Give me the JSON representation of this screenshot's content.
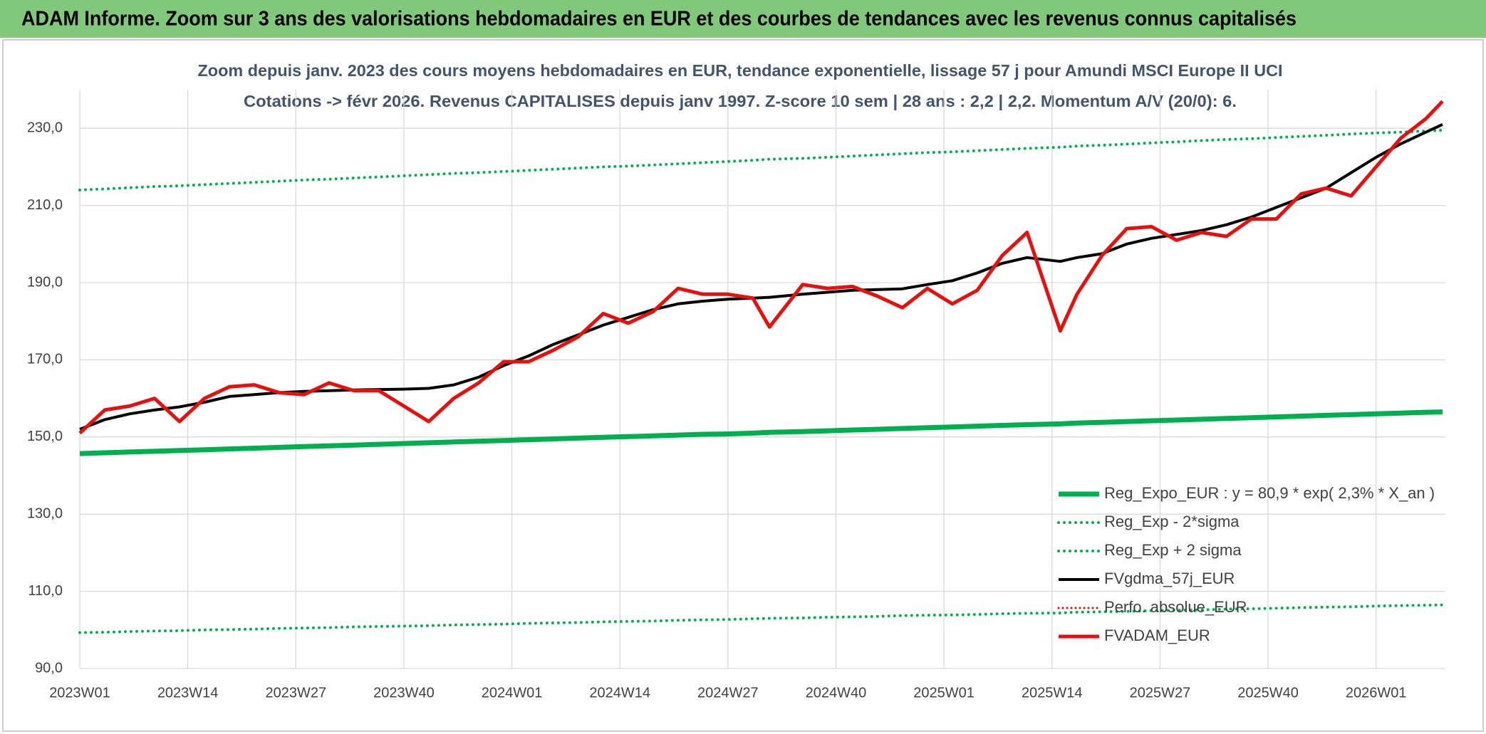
{
  "chart_data": {
    "type": "line",
    "title": "ADAM Informe. Zoom sur 3 ans des valorisations hebdomadaires en EUR et des courbes de tendances avec les revenus connus capitalisés",
    "subtitle": [
      "Zoom depuis janv. 2023 des cours moyens hebdomadaires en EUR, tendance exponentielle, lissage 57 j pour Amundi MSCI Europe II UCI",
      "Cotations -> févr 2026. Revenus CAPITALISES depuis janv 1997. Z-score 10 sem | 28 ans : 2,2 | 2,2. Momentum A/V (20/0): 6."
    ],
    "x": [
      0,
      3,
      6,
      9,
      12,
      15,
      18,
      21,
      24,
      27,
      30,
      33,
      36,
      39,
      42,
      45,
      48,
      51,
      54,
      57,
      60,
      63,
      66,
      69,
      72,
      75,
      78,
      81,
      83,
      87,
      90,
      93,
      96,
      99,
      102,
      105,
      108,
      111,
      114,
      118,
      120,
      123,
      126,
      129,
      132,
      135,
      138,
      141,
      144,
      147,
      150,
      153,
      156,
      159,
      162,
      164
    ],
    "xlim": [
      0,
      164
    ],
    "xticks": [
      {
        "value": 0,
        "label": "2023W01"
      },
      {
        "value": 13,
        "label": "2023W14"
      },
      {
        "value": 26,
        "label": "2023W27"
      },
      {
        "value": 39,
        "label": "2023W40"
      },
      {
        "value": 52,
        "label": "2024W01"
      },
      {
        "value": 65,
        "label": "2024W14"
      },
      {
        "value": 78,
        "label": "2024W27"
      },
      {
        "value": 91,
        "label": "2024W40"
      },
      {
        "value": 104,
        "label": "2025W01"
      },
      {
        "value": 117,
        "label": "2025W14"
      },
      {
        "value": 130,
        "label": "2025W27"
      },
      {
        "value": 143,
        "label": "2025W40"
      },
      {
        "value": 156,
        "label": "2026W01"
      }
    ],
    "ylim": [
      90,
      240
    ],
    "yticks": [
      {
        "value": 90,
        "label": "90,0"
      },
      {
        "value": 110,
        "label": "110,0"
      },
      {
        "value": 130,
        "label": "130,0"
      },
      {
        "value": 150,
        "label": "150,0"
      },
      {
        "value": 170,
        "label": "170,0"
      },
      {
        "value": 190,
        "label": "190,0"
      },
      {
        "value": 210,
        "label": "210,0"
      },
      {
        "value": 230,
        "label": "230,0"
      }
    ],
    "grid": true,
    "legend": "lower right",
    "series": [
      {
        "name": "Reg_Expo_EUR : y = 80,9 * exp( 2,3% *  X_an )",
        "color": "#00b050",
        "style": "solid",
        "linewidth": 7,
        "values": [
          145.7,
          145.9,
          146.1,
          146.3,
          146.5,
          146.7,
          146.9,
          147.1,
          147.3,
          147.5,
          147.7,
          147.9,
          148.1,
          148.3,
          148.5,
          148.7,
          148.9,
          149.1,
          149.3,
          149.5,
          149.7,
          149.9,
          150.1,
          150.3,
          150.5,
          150.7,
          150.8,
          151.0,
          151.2,
          151.4,
          151.6,
          151.8,
          152.0,
          152.2,
          152.4,
          152.6,
          152.8,
          153.0,
          153.2,
          153.4,
          153.6,
          153.8,
          154.0,
          154.2,
          154.4,
          154.6,
          154.8,
          155.0,
          155.2,
          155.4,
          155.6,
          155.8,
          156.0,
          156.2,
          156.4,
          156.5
        ]
      },
      {
        "name": "Reg_Exp - 2*sigma",
        "color": "#00b050",
        "style": "dotted",
        "linewidth": 4,
        "values": [
          99.3,
          99.4,
          99.6,
          99.7,
          99.8,
          100.0,
          100.1,
          100.2,
          100.4,
          100.5,
          100.6,
          100.8,
          100.9,
          101.0,
          101.1,
          101.3,
          101.4,
          101.5,
          101.7,
          101.8,
          101.9,
          102.1,
          102.2,
          102.3,
          102.5,
          102.6,
          102.7,
          102.9,
          103.0,
          103.1,
          103.3,
          103.4,
          103.5,
          103.7,
          103.8,
          103.9,
          104.0,
          104.2,
          104.3,
          104.4,
          104.6,
          104.7,
          104.8,
          105.0,
          105.1,
          105.2,
          105.4,
          105.5,
          105.6,
          105.8,
          105.9,
          106.0,
          106.2,
          106.3,
          106.4,
          106.5
        ]
      },
      {
        "name": "Reg_Exp + 2 sigma",
        "color": "#00b050",
        "style": "dotted",
        "linewidth": 4,
        "values": [
          214.0,
          214.3,
          214.6,
          214.9,
          215.1,
          215.4,
          215.7,
          216.0,
          216.3,
          216.6,
          216.8,
          217.1,
          217.4,
          217.7,
          218.0,
          218.3,
          218.5,
          218.8,
          219.1,
          219.4,
          219.7,
          220.0,
          220.2,
          220.5,
          220.8,
          221.1,
          221.4,
          221.7,
          222.0,
          222.2,
          222.5,
          222.8,
          223.1,
          223.4,
          223.7,
          223.9,
          224.2,
          224.5,
          224.8,
          225.1,
          225.4,
          225.6,
          225.9,
          226.2,
          226.5,
          226.8,
          227.1,
          227.3,
          227.6,
          227.9,
          228.2,
          228.5,
          228.8,
          229.0,
          229.3,
          229.5
        ]
      },
      {
        "name": "FVgdma_57j_EUR",
        "color": "#000000",
        "style": "solid",
        "linewidth": 4,
        "values": [
          152,
          154.5,
          156,
          157,
          157.8,
          159,
          160.5,
          161,
          161.5,
          161.8,
          162,
          162.2,
          162.3,
          162.4,
          162.6,
          163.5,
          165.5,
          168.5,
          171,
          174,
          176.5,
          179,
          181,
          183,
          184.5,
          185.2,
          185.7,
          186,
          186.2,
          187,
          187.5,
          188,
          188.2,
          188.4,
          189.5,
          190.5,
          192.5,
          195,
          196.5,
          195.5,
          196.5,
          197.5,
          200,
          201.5,
          202.5,
          203.5,
          205,
          207,
          209.5,
          212,
          214.5,
          218.5,
          222.5,
          226,
          229,
          231
        ]
      },
      {
        "name": "Perfo. absolue_EUR",
        "color": "#ff0000",
        "style": "dotted",
        "linewidth": 3,
        "values": [
          null,
          null,
          null,
          null,
          null,
          null,
          null,
          null,
          null,
          null,
          null,
          null,
          null,
          null,
          null,
          null,
          null,
          null,
          null,
          null,
          null,
          null,
          null,
          null,
          null,
          null,
          null,
          null,
          null,
          null,
          null,
          null,
          null,
          null,
          null,
          null,
          null,
          null,
          null,
          null,
          null,
          null,
          null,
          null,
          null,
          null,
          null,
          null,
          null,
          null,
          null,
          null,
          null,
          null,
          null,
          null
        ]
      },
      {
        "name": "FVADAM_EUR",
        "color": "#e8100f",
        "style": "solid",
        "linewidth": 5,
        "values": [
          151,
          157,
          158,
          160,
          154,
          160,
          163,
          163.5,
          161.5,
          161,
          164,
          162,
          162,
          158,
          154,
          160,
          164,
          169.5,
          169.5,
          172.5,
          176,
          182,
          179.5,
          182.5,
          188.5,
          187,
          187,
          186,
          178.5,
          189.5,
          188.5,
          189,
          186.5,
          183.5,
          188.5,
          184.5,
          188,
          197,
          203,
          177.5,
          187,
          197,
          204,
          204.5,
          201,
          203,
          202,
          206.5,
          206.5,
          213,
          214.5,
          212.5,
          220,
          227.5,
          232.5,
          237
        ]
      }
    ]
  }
}
